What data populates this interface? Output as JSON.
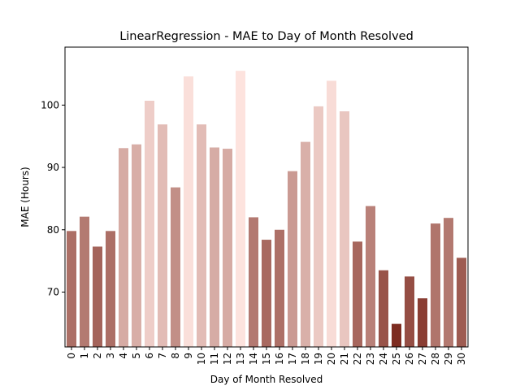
{
  "chart_data": {
    "type": "bar",
    "title": "LinearRegression - MAE to Day of Month Resolved",
    "xlabel": "Day of Month Resolved",
    "ylabel": "MAE (Hours)",
    "categories": [
      "0",
      "1",
      "2",
      "3",
      "4",
      "5",
      "6",
      "7",
      "8",
      "9",
      "10",
      "11",
      "12",
      "13",
      "14",
      "15",
      "16",
      "17",
      "18",
      "19",
      "20",
      "21",
      "22",
      "23",
      "24",
      "25",
      "26",
      "27",
      "28",
      "29",
      "30"
    ],
    "values": [
      79.8,
      82.1,
      77.3,
      79.8,
      93.1,
      93.7,
      100.7,
      96.9,
      86.8,
      104.6,
      96.9,
      93.2,
      93.0,
      105.5,
      82.0,
      78.4,
      80.0,
      89.4,
      94.1,
      99.8,
      103.9,
      99.0,
      78.1,
      83.8,
      73.5,
      64.9,
      72.5,
      69.0,
      81.0,
      81.9,
      75.5
    ],
    "ylim": [
      61.2,
      109.3
    ],
    "yticks": [
      70,
      80,
      90,
      100
    ],
    "color_low": "#7d2c21",
    "color_high": "#fde3de",
    "grid": false
  }
}
